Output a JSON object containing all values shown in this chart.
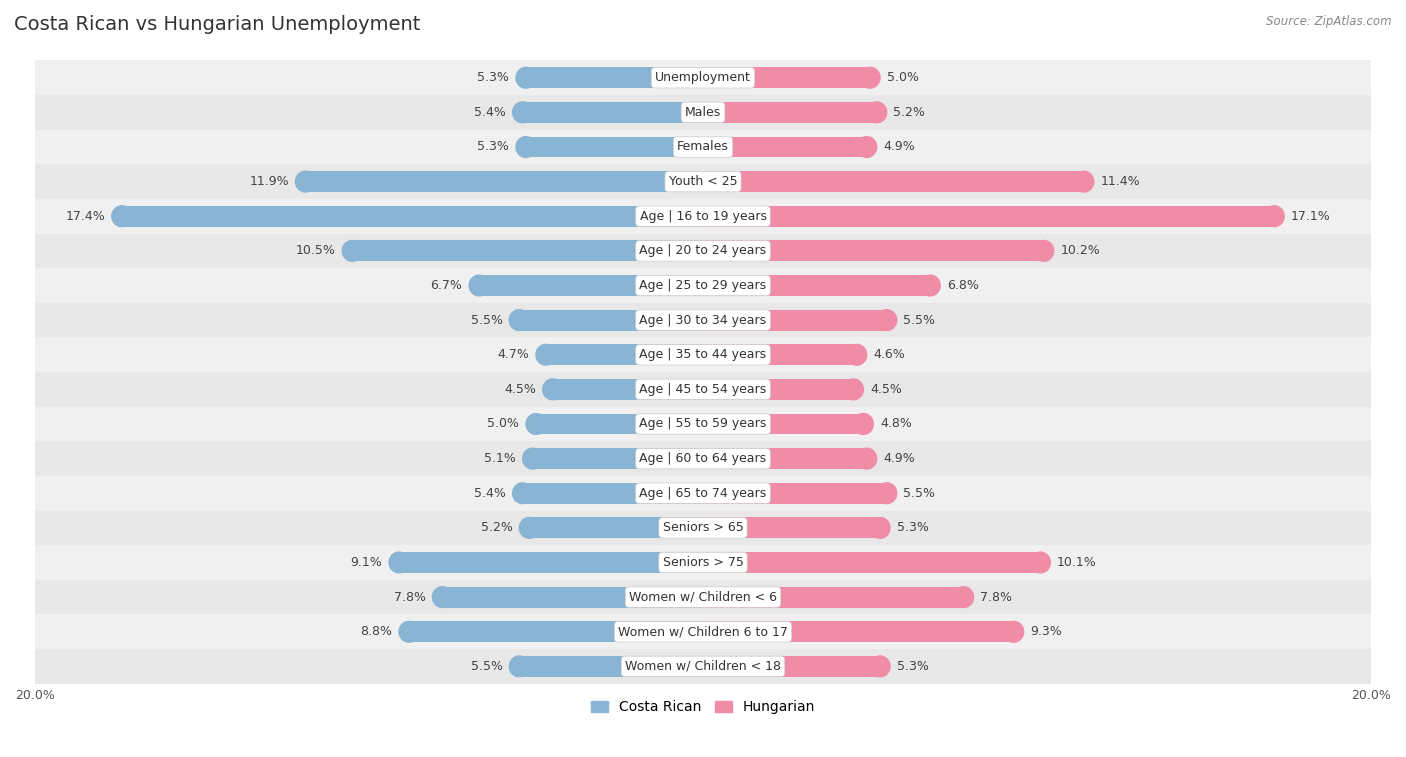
{
  "title": "Costa Rican vs Hungarian Unemployment",
  "source": "Source: ZipAtlas.com",
  "categories": [
    "Unemployment",
    "Males",
    "Females",
    "Youth < 25",
    "Age | 16 to 19 years",
    "Age | 20 to 24 years",
    "Age | 25 to 29 years",
    "Age | 30 to 34 years",
    "Age | 35 to 44 years",
    "Age | 45 to 54 years",
    "Age | 55 to 59 years",
    "Age | 60 to 64 years",
    "Age | 65 to 74 years",
    "Seniors > 65",
    "Seniors > 75",
    "Women w/ Children < 6",
    "Women w/ Children 6 to 17",
    "Women w/ Children < 18"
  ],
  "costa_rican": [
    5.3,
    5.4,
    5.3,
    11.9,
    17.4,
    10.5,
    6.7,
    5.5,
    4.7,
    4.5,
    5.0,
    5.1,
    5.4,
    5.2,
    9.1,
    7.8,
    8.8,
    5.5
  ],
  "hungarian": [
    5.0,
    5.2,
    4.9,
    11.4,
    17.1,
    10.2,
    6.8,
    5.5,
    4.6,
    4.5,
    4.8,
    4.9,
    5.5,
    5.3,
    10.1,
    7.8,
    9.3,
    5.3
  ],
  "costa_rican_color": "#8ab4d4",
  "hungarian_color": "#f08ca8",
  "row_colors": [
    "#f0f0f0",
    "#e8e8e8"
  ],
  "max_val": 20.0,
  "label_fontsize": 9,
  "title_fontsize": 14,
  "legend_fontsize": 10,
  "bar_height": 0.6
}
